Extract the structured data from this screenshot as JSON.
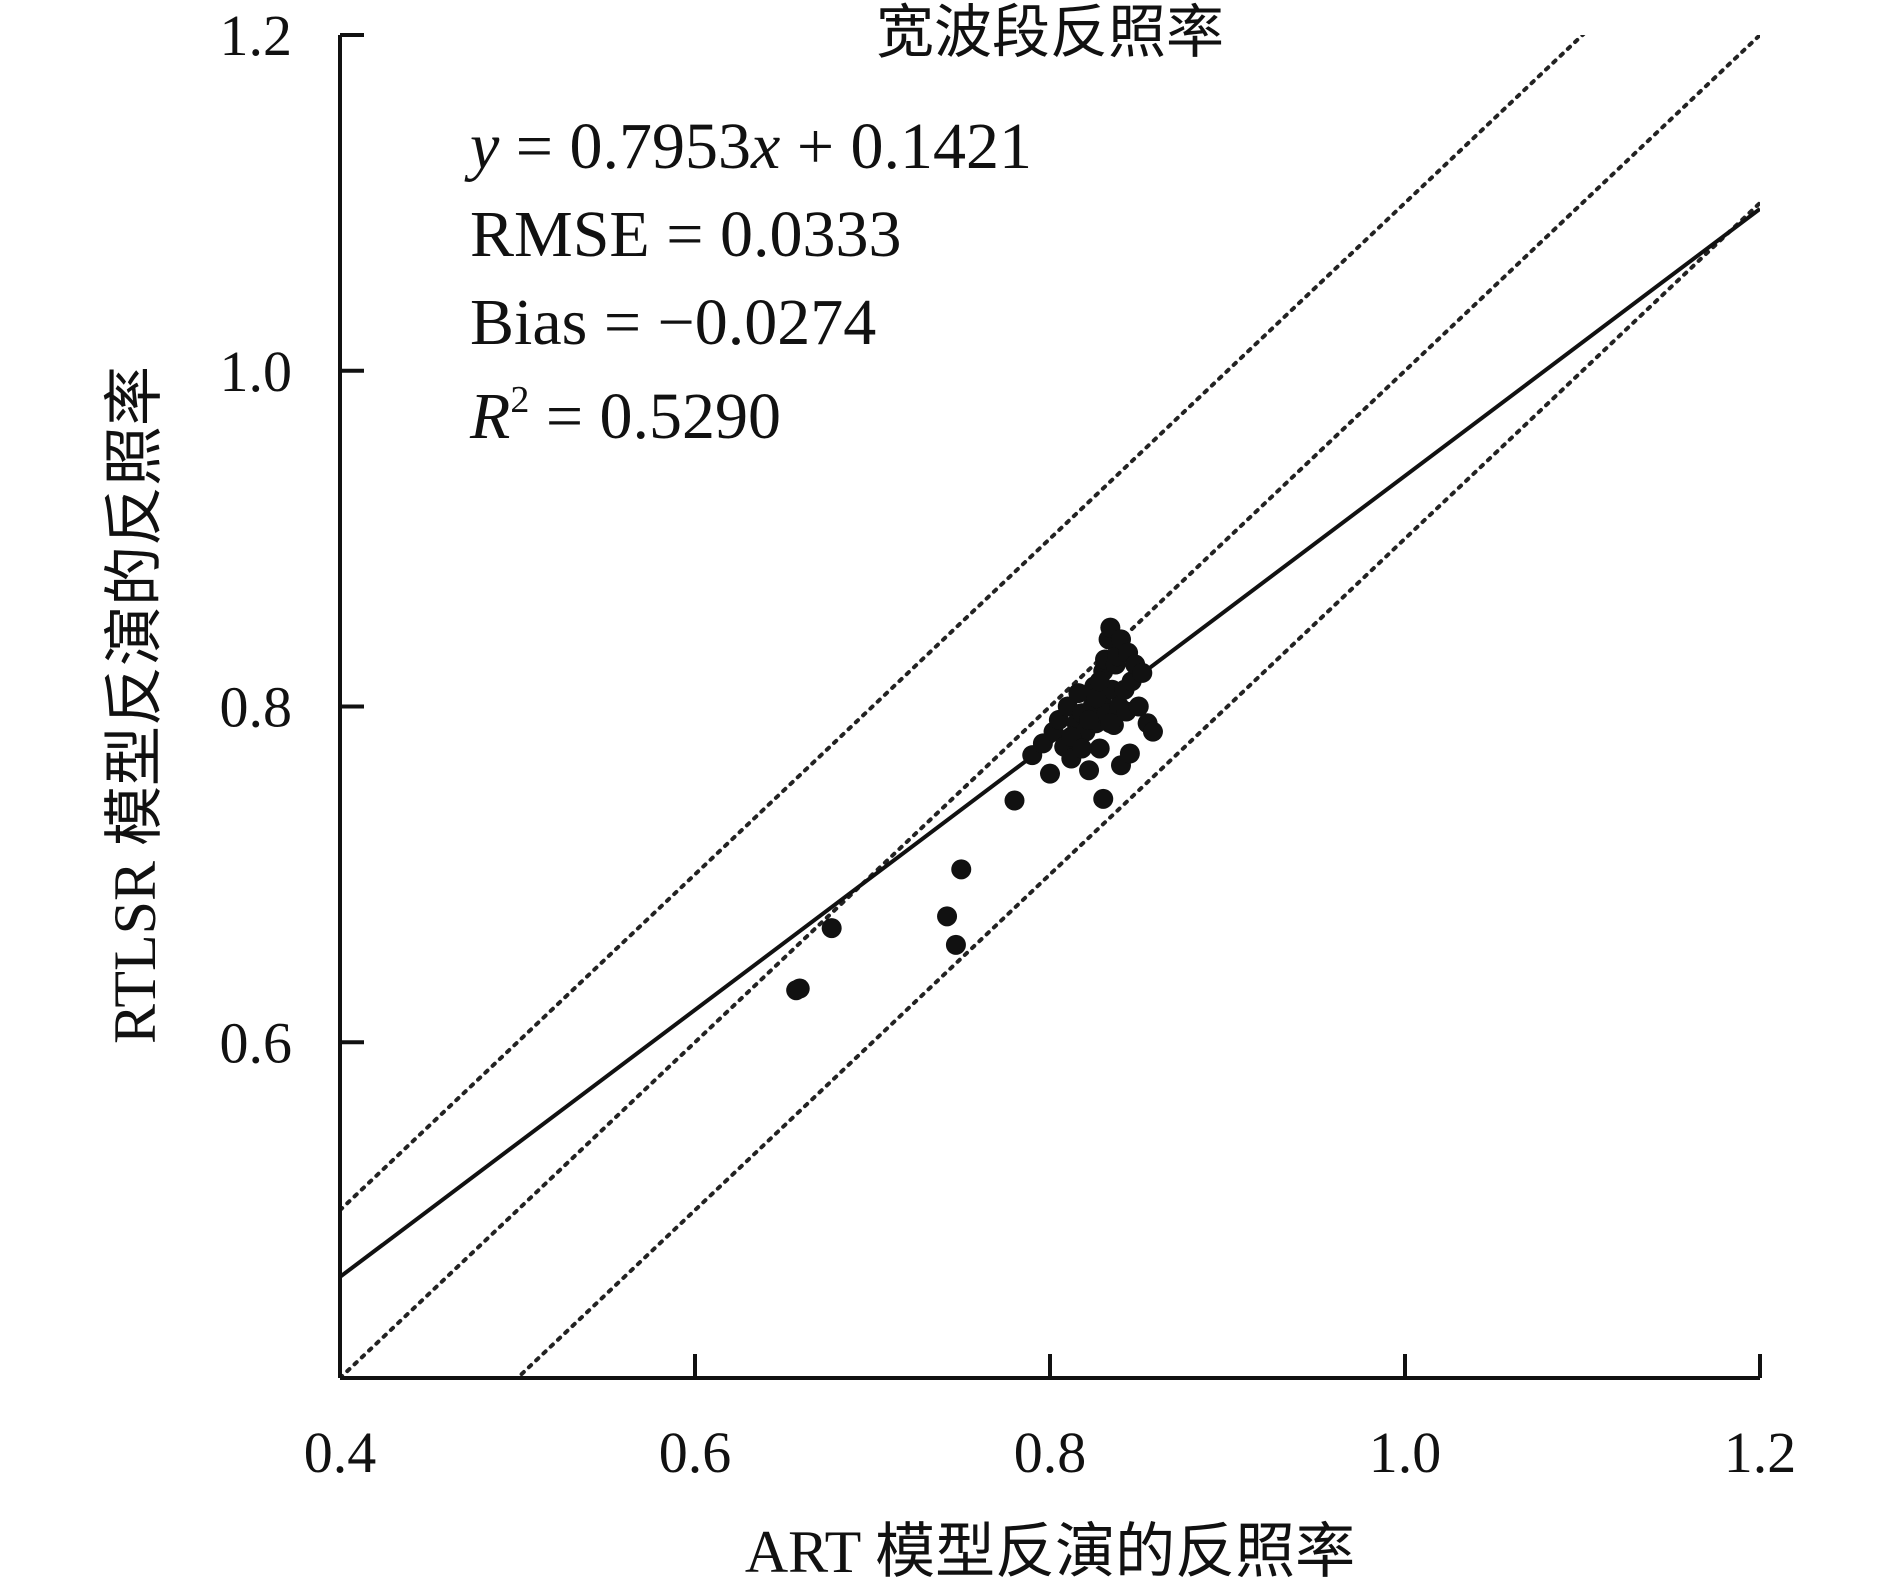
{
  "chart_data": {
    "type": "scatter",
    "title": "宽波段反照率",
    "xlabel": "ART 模型反演的反照率",
    "ylabel": "RTLSR 模型反演的反照率",
    "xlim": [
      0.4,
      1.2
    ],
    "ylim": [
      0.4,
      1.2
    ],
    "xticks": [
      "0.4",
      "0.6",
      "0.8",
      "1.0",
      "1.2"
    ],
    "yticks": [
      "0.6",
      "0.8",
      "1.0",
      "1.2"
    ],
    "xtick_values": [
      0.4,
      0.6,
      0.8,
      1.0,
      1.2
    ],
    "ytick_values": [
      0.6,
      0.8,
      1.0,
      1.2
    ],
    "grid": false,
    "annotations": {
      "equation_var_y": "y",
      "equation_mid": " = 0.7953",
      "equation_var_x": "x",
      "equation_end": " + 0.1421",
      "rmse": "RMSE = 0.0333",
      "bias": "Bias = −0.0274",
      "r2_var": "R",
      "r2_sup": "2",
      "r2_value": " = 0.5290"
    },
    "fit_line": {
      "slope": 0.7953,
      "intercept": 0.1421
    },
    "reference_lines": [
      {
        "slope": 1,
        "intercept": 0.1
      },
      {
        "slope": 1,
        "intercept": 0.0
      },
      {
        "slope": 1,
        "intercept": -0.1
      }
    ],
    "points": [
      [
        0.657,
        0.631
      ],
      [
        0.659,
        0.632
      ],
      [
        0.677,
        0.668
      ],
      [
        0.742,
        0.675
      ],
      [
        0.747,
        0.658
      ],
      [
        0.75,
        0.703
      ],
      [
        0.78,
        0.744
      ],
      [
        0.79,
        0.771
      ],
      [
        0.796,
        0.778
      ],
      [
        0.8,
        0.76
      ],
      [
        0.802,
        0.785
      ],
      [
        0.805,
        0.792
      ],
      [
        0.808,
        0.776
      ],
      [
        0.81,
        0.8
      ],
      [
        0.812,
        0.769
      ],
      [
        0.815,
        0.79
      ],
      [
        0.816,
        0.808
      ],
      [
        0.818,
        0.796
      ],
      [
        0.82,
        0.785
      ],
      [
        0.822,
        0.762
      ],
      [
        0.824,
        0.8
      ],
      [
        0.825,
        0.812
      ],
      [
        0.826,
        0.79
      ],
      [
        0.828,
        0.775
      ],
      [
        0.829,
        0.803
      ],
      [
        0.83,
        0.745
      ],
      [
        0.83,
        0.821
      ],
      [
        0.831,
        0.828
      ],
      [
        0.832,
        0.796
      ],
      [
        0.833,
        0.84
      ],
      [
        0.834,
        0.847
      ],
      [
        0.835,
        0.81
      ],
      [
        0.836,
        0.789
      ],
      [
        0.837,
        0.825
      ],
      [
        0.838,
        0.83
      ],
      [
        0.839,
        0.8
      ],
      [
        0.84,
        0.765
      ],
      [
        0.84,
        0.84
      ],
      [
        0.842,
        0.81
      ],
      [
        0.843,
        0.797
      ],
      [
        0.844,
        0.832
      ],
      [
        0.845,
        0.772
      ],
      [
        0.846,
        0.815
      ],
      [
        0.848,
        0.825
      ],
      [
        0.85,
        0.8
      ],
      [
        0.852,
        0.82
      ],
      [
        0.855,
        0.79
      ],
      [
        0.858,
        0.785
      ],
      [
        0.812,
        0.782
      ],
      [
        0.818,
        0.775
      ],
      [
        0.826,
        0.805
      ],
      [
        0.834,
        0.79
      ],
      [
        0.822,
        0.792
      ],
      [
        0.828,
        0.815
      ]
    ]
  }
}
